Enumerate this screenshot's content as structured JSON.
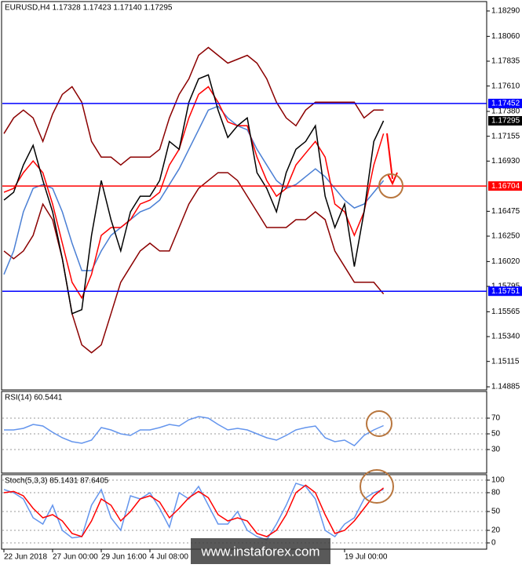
{
  "chart_data": [
    {
      "type": "line",
      "title": "EURUSD,H4  1.17328 1.17423 1.17140 1.17295",
      "ylim": [
        1.14857,
        1.18368
      ],
      "yticks": [
        {
          "value": 1.1829,
          "label": "1.18290"
        },
        {
          "value": 1.1806,
          "label": "1.18060"
        },
        {
          "value": 1.17835,
          "label": "1.17835"
        },
        {
          "value": 1.1761,
          "label": "1.17610"
        },
        {
          "value": 1.1738,
          "label": "1.17380"
        },
        {
          "value": 1.17155,
          "label": "1.17155"
        },
        {
          "value": 1.1693,
          "label": "1.16930"
        },
        {
          "value": 1.16475,
          "label": "1.16475"
        },
        {
          "value": 1.1625,
          "label": "1.16250"
        },
        {
          "value": 1.1602,
          "label": "1.16020"
        },
        {
          "value": 1.15795,
          "label": "1.15795"
        },
        {
          "value": 1.15565,
          "label": "1.15565"
        },
        {
          "value": 1.1534,
          "label": "1.15340"
        },
        {
          "value": 1.15115,
          "label": "1.15115"
        },
        {
          "value": 1.14885,
          "label": "1.14885"
        }
      ],
      "grid": false,
      "series": [
        {
          "color": "#8b0000",
          "values": [
            1.17179,
            1.17321,
            1.17392,
            1.17321,
            1.17108,
            1.17356,
            1.17534,
            1.17604,
            1.17463,
            1.17108,
            1.16966,
            1.16966,
            1.16895,
            1.16966,
            1.16966,
            1.16966,
            1.17037,
            1.17321,
            1.17534,
            1.17675,
            1.17888,
            1.17959,
            1.17888,
            1.17817,
            1.17853,
            1.17888,
            1.17817,
            1.17675,
            1.17463,
            1.17321,
            1.1725,
            1.17392,
            1.17463,
            1.17463,
            1.17463,
            1.17463,
            1.17463,
            1.17321,
            1.17392,
            1.17392
          ]
        },
        {
          "color": "#8b0000",
          "values": [
            1.16116,
            1.16045,
            1.16116,
            1.16257,
            1.16541,
            1.16399,
            1.16045,
            1.15548,
            1.15265,
            1.15194,
            1.15265,
            1.15548,
            1.15832,
            1.15974,
            1.16116,
            1.16186,
            1.16116,
            1.16116,
            1.16328,
            1.16541,
            1.16683,
            1.16754,
            1.16825,
            1.16825,
            1.16754,
            1.16612,
            1.1647,
            1.16328,
            1.16328,
            1.16328,
            1.16399,
            1.16399,
            1.1647,
            1.16399,
            1.16116,
            1.15974,
            1.15832,
            1.15832,
            1.15832,
            1.15726
          ]
        },
        {
          "color": "#4a7fd4",
          "values": [
            1.15903,
            1.16116,
            1.1647,
            1.16683,
            1.16718,
            1.16683,
            1.1647,
            1.16186,
            1.15938,
            1.15938,
            1.16116,
            1.16257,
            1.16328,
            1.16399,
            1.1647,
            1.16505,
            1.16576,
            1.16718,
            1.1686,
            1.17037,
            1.17214,
            1.17392,
            1.17427,
            1.17321,
            1.1725,
            1.17214,
            1.17037,
            1.16895,
            1.16754,
            1.16683,
            1.16718,
            1.16789,
            1.1686,
            1.16789,
            1.16683,
            1.16576,
            1.16505,
            1.16541,
            1.16647,
            1.16754
          ]
        },
        {
          "color": "#ff0000",
          "values": [
            1.16647,
            1.16683,
            1.16825,
            1.16931,
            1.16825,
            1.16541,
            1.16186,
            1.15832,
            1.1569,
            1.15903,
            1.16257,
            1.16328,
            1.16328,
            1.16399,
            1.16541,
            1.16576,
            1.16647,
            1.16895,
            1.17037,
            1.17321,
            1.17534,
            1.17604,
            1.17463,
            1.17285,
            1.1725,
            1.1725,
            1.16966,
            1.16754,
            1.16612,
            1.16683,
            1.16895,
            1.17002,
            1.17108,
            1.16966,
            1.16541,
            1.1647,
            1.16257,
            1.1647,
            1.16895,
            1.17179
          ]
        },
        {
          "color": "#000000",
          "values": [
            1.16576,
            1.16647,
            1.16895,
            1.17073,
            1.16754,
            1.1647,
            1.16045,
            1.15548,
            1.15584,
            1.16257,
            1.16754,
            1.16399,
            1.16116,
            1.1647,
            1.16612,
            1.16612,
            1.16754,
            1.17108,
            1.17037,
            1.17463,
            1.17675,
            1.17711,
            1.17392,
            1.17144,
            1.1725,
            1.17321,
            1.16825,
            1.16683,
            1.1647,
            1.16825,
            1.17037,
            1.17108,
            1.1725,
            1.16612,
            1.16328,
            1.16541,
            1.15974,
            1.1647,
            1.17108,
            1.17295
          ]
        }
      ],
      "levels": [
        {
          "value": 1.17452,
          "color": "#0000ff"
        },
        {
          "value": 1.16704,
          "color": "#ff0000"
        },
        {
          "value": 1.15751,
          "color": "#0000ff"
        }
      ],
      "last": 1.17295
    },
    {
      "type": "line",
      "title": "RSI(14) 60.5441",
      "ylim": [
        0,
        100
      ],
      "yticks": [
        70,
        50,
        30
      ],
      "grid": true,
      "series": [
        {
          "color": "#6495ed",
          "values": [
            55,
            55,
            57,
            62,
            60,
            52,
            45,
            40,
            38,
            42,
            58,
            55,
            50,
            48,
            55,
            55,
            58,
            62,
            60,
            68,
            72,
            70,
            62,
            55,
            57,
            55,
            50,
            45,
            42,
            48,
            55,
            58,
            60,
            45,
            40,
            42,
            35,
            48,
            55,
            60.5441
          ]
        }
      ]
    },
    {
      "type": "line",
      "title": "Stoch(5,3,3) 85.1431 87.6405",
      "ylim": [
        0,
        100
      ],
      "yticks": [
        100,
        80,
        50,
        20,
        0
      ],
      "grid": true,
      "categories": [
        "22 Jun 2018",
        null,
        null,
        null,
        null,
        "27 Jun 00:00",
        null,
        null,
        null,
        null,
        "29 Jun 16:00",
        null,
        null,
        null,
        null,
        "4 Jul 08:00",
        null,
        null,
        null,
        null,
        null,
        null,
        null,
        null,
        null,
        null,
        null,
        null,
        null,
        null,
        null,
        null,
        null,
        null,
        null,
        "19 Jul 00:00",
        null,
        null,
        null,
        null
      ],
      "series": [
        {
          "color": "#6495ed",
          "values": [
            85,
            80,
            70,
            40,
            30,
            60,
            20,
            8,
            10,
            60,
            85,
            40,
            20,
            75,
            70,
            80,
            55,
            25,
            80,
            70,
            90,
            60,
            30,
            30,
            50,
            20,
            10,
            5,
            30,
            60,
            95,
            90,
            70,
            20,
            10,
            30,
            40,
            70,
            80,
            85.1431
          ]
        },
        {
          "color": "#ff0000",
          "values": [
            80,
            82,
            75,
            55,
            40,
            45,
            35,
            15,
            10,
            35,
            70,
            60,
            35,
            50,
            70,
            75,
            65,
            40,
            55,
            72,
            82,
            72,
            45,
            35,
            40,
            35,
            15,
            10,
            20,
            45,
            80,
            92,
            80,
            45,
            15,
            20,
            35,
            55,
            75,
            87.6405
          ]
        }
      ]
    }
  ],
  "watermark": "www.instaforex.com"
}
